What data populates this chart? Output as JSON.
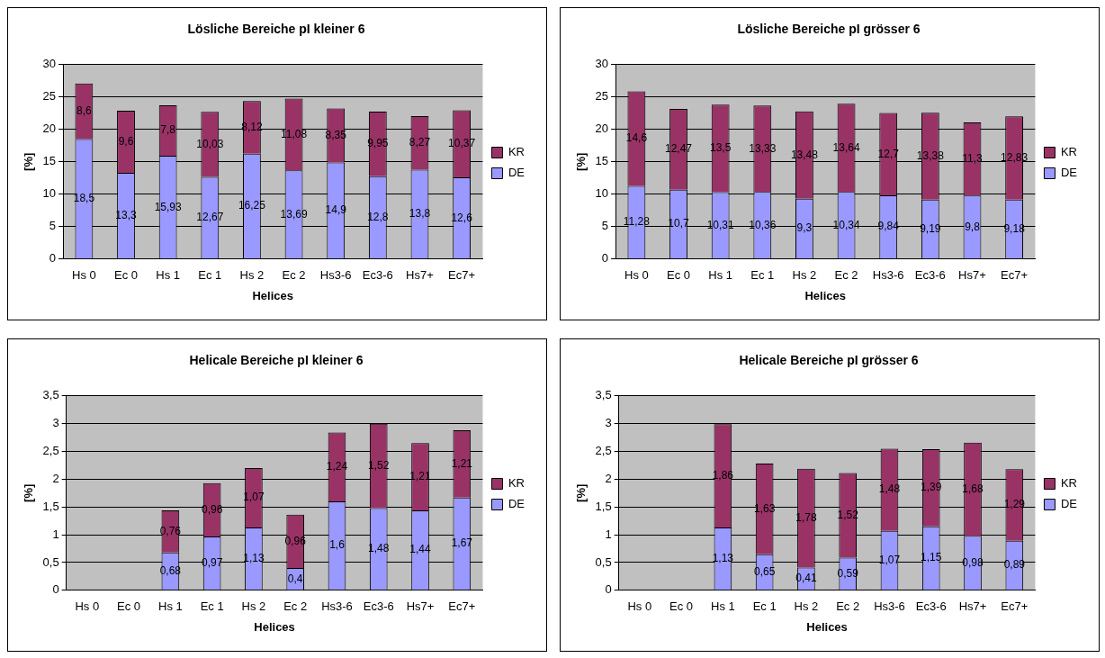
{
  "chart_data": [
    {
      "type": "bar",
      "title": "Lösliche Bereiche pI kleiner 6",
      "xlabel": "Helices",
      "ylabel": "[%]",
      "categories": [
        "Hs 0",
        "Ec 0",
        "Hs 1",
        "Ec 1",
        "Hs 2",
        "Ec 2",
        "Hs3-6",
        "Ec3-6",
        "Hs7+",
        "Ec7+"
      ],
      "stacked": true,
      "ylim": [
        0,
        30
      ],
      "yticks": [
        0,
        5,
        10,
        15,
        20,
        25,
        30
      ],
      "grid": "y",
      "legend": "right",
      "series": [
        {
          "name": "DE",
          "color": "#9999ff",
          "values": [
            18.5,
            13.3,
            15.93,
            12.67,
            16.25,
            13.69,
            14.9,
            12.8,
            13.8,
            12.6
          ],
          "value_labels": [
            "18,5",
            "13,3",
            "15,93",
            "12,67",
            "16,25",
            "13,69",
            "14,9",
            "12,8",
            "13,8",
            "12,6"
          ]
        },
        {
          "name": "KR",
          "color": "#993366",
          "values": [
            8.6,
            9.6,
            7.8,
            10.03,
            8.12,
            11.08,
            8.35,
            9.95,
            8.27,
            10.37
          ],
          "value_labels": [
            "8,6",
            "9,6",
            "7,8",
            "10,03",
            "8,12",
            "11,08",
            "8,35",
            "9,95",
            "8,27",
            "10,37"
          ]
        }
      ]
    },
    {
      "type": "bar",
      "title": "Lösliche Bereiche pI grösser 6",
      "xlabel": "Helices",
      "ylabel": "[%]",
      "categories": [
        "Hs 0",
        "Ec 0",
        "Hs 1",
        "Ec 1",
        "Hs 2",
        "Ec 2",
        "Hs3-6",
        "Ec3-6",
        "Hs7+",
        "Ec7+"
      ],
      "stacked": true,
      "ylim": [
        0,
        30
      ],
      "yticks": [
        0,
        5,
        10,
        15,
        20,
        25,
        30
      ],
      "grid": "y",
      "legend": "right",
      "series": [
        {
          "name": "DE",
          "color": "#9999ff",
          "values": [
            11.28,
            10.7,
            10.31,
            10.36,
            9.3,
            10.34,
            9.84,
            9.19,
            9.8,
            9.18
          ],
          "value_labels": [
            "11,28",
            "10,7",
            "10,31",
            "10,36",
            "9,3",
            "10,34",
            "9,84",
            "9,19",
            "9,8",
            "9,18"
          ]
        },
        {
          "name": "KR",
          "color": "#993366",
          "values": [
            14.6,
            12.47,
            13.5,
            13.33,
            13.48,
            13.64,
            12.7,
            13.38,
            11.3,
            12.83
          ],
          "value_labels": [
            "14,6",
            "12,47",
            "13,5",
            "13,33",
            "13,48",
            "13,64",
            "12,7",
            "13,38",
            "11,3",
            "12,83"
          ]
        }
      ]
    },
    {
      "type": "bar",
      "title": "Helicale Bereiche pI kleiner 6",
      "xlabel": "Helices",
      "ylabel": "[%]",
      "categories": [
        "Hs 0",
        "Ec 0",
        "Hs 1",
        "Ec 1",
        "Hs 2",
        "Ec 2",
        "Hs3-6",
        "Ec3-6",
        "Hs7+",
        "Ec7+"
      ],
      "stacked": true,
      "ylim": [
        0,
        3.5
      ],
      "yticks": [
        0,
        {
          "value": 0.5,
          "label": "0,5"
        },
        1,
        {
          "value": 1.5,
          "label": "1,5"
        },
        2,
        {
          "value": 2.5,
          "label": "2,5"
        },
        3,
        {
          "value": 3.5,
          "label": "3,5"
        }
      ],
      "grid": "y",
      "legend": "right",
      "series": [
        {
          "name": "DE",
          "color": "#9999ff",
          "values": [
            null,
            null,
            0.68,
            0.97,
            1.13,
            0.4,
            1.6,
            1.48,
            1.44,
            1.67
          ],
          "value_labels": [
            null,
            null,
            "0,68",
            "0,97",
            "1,13",
            "0,4",
            "1,6",
            "1,48",
            "1,44",
            "1,67"
          ]
        },
        {
          "name": "KR",
          "color": "#993366",
          "values": [
            null,
            null,
            0.76,
            0.96,
            1.07,
            0.96,
            1.24,
            1.52,
            1.21,
            1.21
          ],
          "value_labels": [
            null,
            null,
            "0,76",
            "0,96",
            "1,07",
            "0,96",
            "1,24",
            "1,52",
            "1,21",
            "1,21"
          ]
        }
      ]
    },
    {
      "type": "bar",
      "title": "Helicale Bereiche pI grösser 6",
      "xlabel": "Helices",
      "ylabel": "[%]",
      "categories": [
        "Hs 0",
        "Ec 0",
        "Hs 1",
        "Ec 1",
        "Hs 2",
        "Ec 2",
        "Hs3-6",
        "Ec3-6",
        "Hs7+",
        "Ec7+"
      ],
      "stacked": true,
      "ylim": [
        0,
        3.5
      ],
      "yticks": [
        0,
        {
          "value": 0.5,
          "label": "0,5"
        },
        1,
        {
          "value": 1.5,
          "label": "1,5"
        },
        2,
        {
          "value": 2.5,
          "label": "2,5"
        },
        3,
        {
          "value": 3.5,
          "label": "3,5"
        }
      ],
      "grid": "y",
      "legend": "right",
      "series": [
        {
          "name": "DE",
          "color": "#9999ff",
          "values": [
            null,
            null,
            1.13,
            0.65,
            0.41,
            0.59,
            1.07,
            1.15,
            0.98,
            0.89
          ],
          "value_labels": [
            null,
            null,
            "1,13",
            "0,65",
            "0,41",
            "0,59",
            "1,07",
            "1,15",
            "0,98",
            "0,89"
          ]
        },
        {
          "name": "KR",
          "color": "#993366",
          "values": [
            null,
            null,
            1.86,
            1.63,
            1.78,
            1.52,
            1.48,
            1.39,
            1.68,
            1.29
          ],
          "value_labels": [
            null,
            null,
            "1,86",
            "1,63",
            "1,78",
            "1,52",
            "1,48",
            "1,39",
            "1,68",
            "1,29"
          ]
        }
      ]
    }
  ]
}
